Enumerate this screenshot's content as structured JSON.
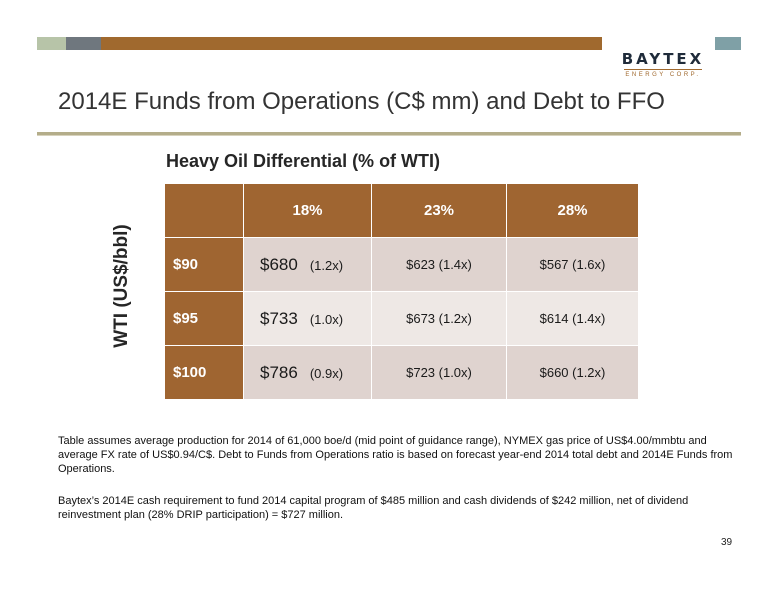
{
  "logo": {
    "main": "BAYTEX",
    "sub": "ENERGY CORP."
  },
  "title": "2014E Funds from Operations (C$ mm) and Debt to FFO",
  "heading": "Heavy Oil Differential (% of WTI)",
  "y_label": "WTI (US$/bbl)",
  "table": {
    "columns": [
      "18%",
      "23%",
      "28%"
    ],
    "rows": [
      {
        "label": "$90",
        "col1_value": "$680",
        "col1_multiple": "(1.2x)",
        "col2": "$623 (1.4x)",
        "col3": "$567 (1.6x)"
      },
      {
        "label": "$95",
        "col1_value": "$733",
        "col1_multiple": "(1.0x)",
        "col2": "$673 (1.2x)",
        "col3": "$614 (1.4x)"
      },
      {
        "label": "$100",
        "col1_value": "$786",
        "col1_multiple": "(0.9x)",
        "col2": "$723 (1.0x)",
        "col3": "$660 (1.2x)"
      }
    ]
  },
  "notes": [
    "Table assumes average production for 2014 of 61,000 boe/d (mid point of guidance range), NYMEX gas price of US$4.00/mmbtu and average FX rate of US$0.94/C$. Debt to Funds from Operations ratio is based on forecast year-end 2014 total debt and 2014E Funds from Operations.",
    "Baytex’s 2014E cash requirement to fund 2014 capital program of $485 million and cash dividends of $242 million, net of dividend reinvestment plan (28% DRIP participation) = $727 million."
  ],
  "page_number": "39",
  "colors": {
    "brown": "#9f6531",
    "row_dark": "#dfd3cf",
    "row_light": "#eee8e5"
  }
}
